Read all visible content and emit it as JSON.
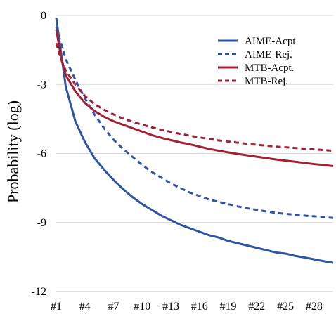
{
  "chart_data": {
    "type": "line",
    "ylabel": "Probability (log)",
    "xlabel": "",
    "ylim": [
      -12,
      0
    ],
    "yticks": [
      "0",
      "-3",
      "-6",
      "-9",
      "-12"
    ],
    "ytick_values": [
      0,
      -3,
      -6,
      -9,
      -12
    ],
    "xticks": [
      "#1",
      "#4",
      "#7",
      "#10",
      "#13",
      "#16",
      "#19",
      "#22",
      "#25",
      "#28"
    ],
    "xtick_values": [
      1,
      4,
      7,
      10,
      13,
      16,
      19,
      22,
      25,
      28
    ],
    "xlim": [
      1,
      30
    ],
    "grid": "horizontal",
    "legend_position": "top-right",
    "x": [
      1,
      1.5,
      2,
      3,
      4,
      5,
      6,
      7,
      8,
      9,
      10,
      11,
      12,
      13,
      14,
      15,
      16,
      17,
      18,
      19,
      20,
      21,
      22,
      23,
      24,
      25,
      26,
      27,
      28,
      29,
      30
    ],
    "series": [
      {
        "name": "AIME-Acpt.",
        "color": "#2e55a5",
        "dash": "solid",
        "values": [
          -0.1,
          -1.6,
          -3.1,
          -4.6,
          -5.5,
          -6.2,
          -6.7,
          -7.15,
          -7.55,
          -7.9,
          -8.2,
          -8.45,
          -8.7,
          -8.9,
          -9.1,
          -9.25,
          -9.4,
          -9.55,
          -9.65,
          -9.8,
          -9.9,
          -10.0,
          -10.1,
          -10.2,
          -10.3,
          -10.35,
          -10.45,
          -10.52,
          -10.6,
          -10.68,
          -10.75
        ]
      },
      {
        "name": "AIME-Rej.",
        "color": "#2e55a5",
        "dash": "dashed",
        "values": [
          -0.5,
          -1.2,
          -1.9,
          -2.8,
          -3.6,
          -4.3,
          -4.9,
          -5.4,
          -5.8,
          -6.15,
          -6.5,
          -6.8,
          -7.05,
          -7.3,
          -7.5,
          -7.7,
          -7.85,
          -8.0,
          -8.1,
          -8.2,
          -8.3,
          -8.38,
          -8.45,
          -8.52,
          -8.58,
          -8.62,
          -8.66,
          -8.7,
          -8.73,
          -8.76,
          -8.8
        ]
      },
      {
        "name": "MTB-Acpt.",
        "color": "#a31f34",
        "dash": "solid",
        "values": [
          -0.6,
          -1.8,
          -2.6,
          -3.3,
          -3.8,
          -4.15,
          -4.4,
          -4.6,
          -4.75,
          -4.9,
          -5.05,
          -5.2,
          -5.32,
          -5.42,
          -5.52,
          -5.6,
          -5.7,
          -5.8,
          -5.88,
          -5.95,
          -6.02,
          -6.08,
          -6.14,
          -6.2,
          -6.26,
          -6.31,
          -6.36,
          -6.41,
          -6.46,
          -6.5,
          -6.55
        ]
      },
      {
        "name": "MTB-Rej.",
        "color": "#a31f34",
        "dash": "dashed",
        "values": [
          -1.2,
          -1.9,
          -2.4,
          -3.0,
          -3.5,
          -3.85,
          -4.1,
          -4.3,
          -4.48,
          -4.62,
          -4.75,
          -4.86,
          -4.97,
          -5.06,
          -5.15,
          -5.23,
          -5.3,
          -5.37,
          -5.43,
          -5.48,
          -5.53,
          -5.58,
          -5.62,
          -5.66,
          -5.7,
          -5.73,
          -5.76,
          -5.79,
          -5.82,
          -5.85,
          -5.88
        ]
      }
    ]
  }
}
